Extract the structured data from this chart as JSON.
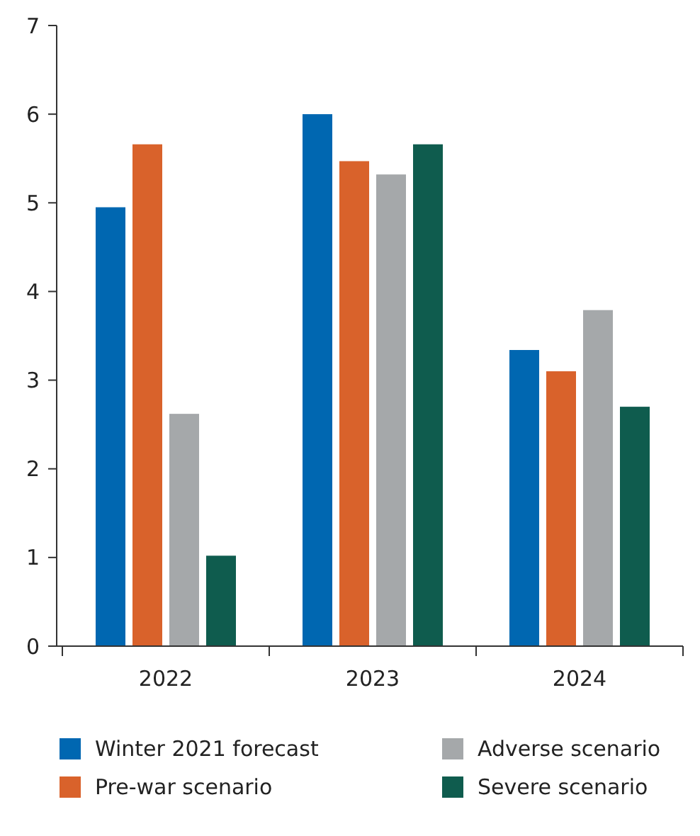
{
  "chart_data": {
    "type": "bar",
    "categories": [
      "2022",
      "2023",
      "2024"
    ],
    "series": [
      {
        "name": "Winter 2021 forecast",
        "color": "#0067b1",
        "values": [
          4.95,
          6.0,
          3.34
        ]
      },
      {
        "name": "Pre-war scenario",
        "color": "#d9622b",
        "values": [
          5.66,
          5.47,
          3.1
        ]
      },
      {
        "name": "Adverse scenario",
        "color": "#a5a8aa",
        "values": [
          2.62,
          5.32,
          3.79
        ]
      },
      {
        "name": "Severe scenario",
        "color": "#0f5c4e",
        "values": [
          1.02,
          5.66,
          2.7
        ]
      }
    ],
    "ylim": [
      0,
      7
    ],
    "yticks": [
      0,
      1,
      2,
      3,
      4,
      5,
      6,
      7
    ],
    "grid": false,
    "legend": "bottom"
  }
}
